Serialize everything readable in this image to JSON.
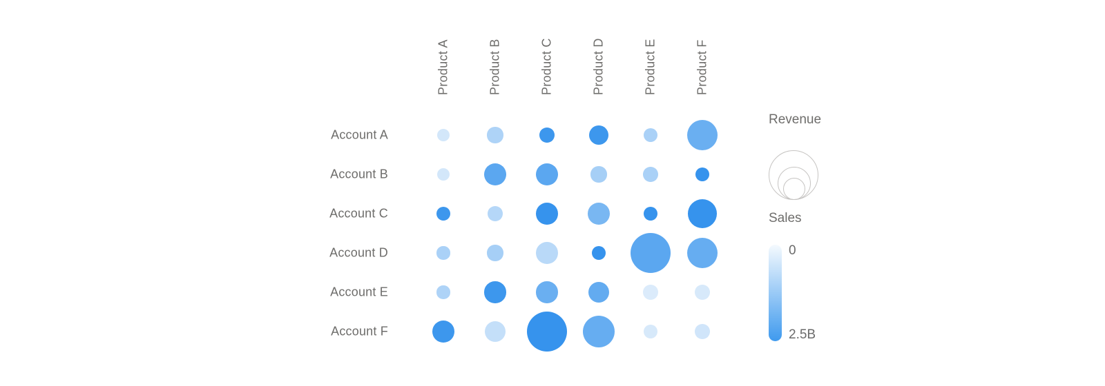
{
  "legend": {
    "size_title": "Revenue",
    "color_title": "Sales",
    "color_min_label": "0",
    "color_max_label": "2.5B"
  },
  "chart_data": {
    "type": "bubble-matrix",
    "rows": [
      "Account A",
      "Account B",
      "Account C",
      "Account D",
      "Account E",
      "Account F"
    ],
    "columns": [
      "Product A",
      "Product B",
      "Product C",
      "Product D",
      "Product E",
      "Product F"
    ],
    "size_metric": "Revenue",
    "color_metric": "Sales",
    "color_scale": {
      "min_value": 0,
      "max_value": 2.5,
      "unit": "B",
      "cell_light": "#eaf3fc",
      "cell_dark": "#2e8fec",
      "bar_top": "#f5fafe",
      "bar_bottom": "#3f9aee"
    },
    "sales_B": [
      [
        0.3,
        0.8,
        2.3,
        2.3,
        0.85,
        1.7
      ],
      [
        0.3,
        1.9,
        1.9,
        0.9,
        0.85,
        2.4
      ],
      [
        2.3,
        0.7,
        2.4,
        1.5,
        2.4,
        2.4
      ],
      [
        0.85,
        0.9,
        0.65,
        2.4,
        1.9,
        1.75
      ],
      [
        0.8,
        2.3,
        1.7,
        1.8,
        0.2,
        0.25
      ],
      [
        2.3,
        0.5,
        2.4,
        1.75,
        0.25,
        0.35
      ]
    ],
    "revenue_rel": [
      [
        0.1,
        0.16,
        0.14,
        0.23,
        0.12,
        0.58
      ],
      [
        0.1,
        0.32,
        0.32,
        0.16,
        0.14,
        0.13
      ],
      [
        0.12,
        0.14,
        0.3,
        0.3,
        0.13,
        0.52
      ],
      [
        0.11,
        0.16,
        0.3,
        0.13,
        1.0,
        0.58
      ],
      [
        0.11,
        0.29,
        0.29,
        0.27,
        0.14,
        0.14
      ],
      [
        0.3,
        0.27,
        1.0,
        0.63,
        0.13,
        0.14
      ]
    ]
  }
}
